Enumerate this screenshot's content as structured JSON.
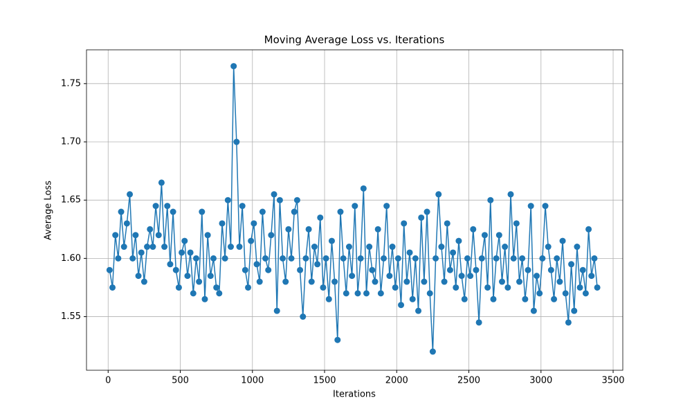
{
  "chart_data": {
    "type": "line",
    "title": "Moving Average Loss vs. Iterations",
    "x_label": "Iterations",
    "y_label": "Average Loss",
    "x": [
      10,
      30,
      50,
      70,
      90,
      110,
      130,
      150,
      170,
      190,
      210,
      230,
      250,
      270,
      290,
      310,
      330,
      350,
      370,
      390,
      410,
      430,
      450,
      470,
      490,
      510,
      530,
      550,
      570,
      590,
      610,
      630,
      650,
      670,
      690,
      710,
      730,
      750,
      770,
      790,
      810,
      830,
      850,
      870,
      890,
      910,
      930,
      950,
      970,
      990,
      1010,
      1030,
      1050,
      1070,
      1090,
      1110,
      1130,
      1150,
      1170,
      1190,
      1210,
      1230,
      1250,
      1270,
      1290,
      1310,
      1330,
      1350,
      1370,
      1390,
      1410,
      1430,
      1450,
      1470,
      1490,
      1510,
      1530,
      1550,
      1570,
      1590,
      1610,
      1630,
      1650,
      1670,
      1690,
      1710,
      1730,
      1750,
      1770,
      1790,
      1810,
      1830,
      1850,
      1870,
      1890,
      1910,
      1930,
      1950,
      1970,
      1990,
      2010,
      2030,
      2050,
      2070,
      2090,
      2110,
      2130,
      2150,
      2170,
      2190,
      2210,
      2230,
      2250,
      2270,
      2290,
      2310,
      2330,
      2350,
      2370,
      2390,
      2410,
      2430,
      2450,
      2470,
      2490,
      2510,
      2530,
      2550,
      2570,
      2590,
      2610,
      2630,
      2650,
      2670,
      2690,
      2710,
      2730,
      2750,
      2770,
      2790,
      2810,
      2830,
      2850,
      2870,
      2890,
      2910,
      2930,
      2950,
      2970,
      2990,
      3010,
      3030,
      3050,
      3070,
      3090,
      3110,
      3130,
      3150,
      3170,
      3190,
      3210,
      3230,
      3250,
      3270,
      3290,
      3310,
      3330,
      3350,
      3370,
      3390
    ],
    "series": [
      {
        "color": "#1f77b4",
        "values": [
          1.59,
          1.575,
          1.62,
          1.6,
          1.64,
          1.61,
          1.63,
          1.655,
          1.6,
          1.62,
          1.585,
          1.605,
          1.58,
          1.61,
          1.625,
          1.61,
          1.645,
          1.62,
          1.665,
          1.61,
          1.645,
          1.595,
          1.64,
          1.59,
          1.575,
          1.605,
          1.615,
          1.585,
          1.605,
          1.57,
          1.6,
          1.58,
          1.64,
          1.565,
          1.62,
          1.585,
          1.6,
          1.575,
          1.57,
          1.63,
          1.6,
          1.65,
          1.61,
          1.765,
          1.7,
          1.61,
          1.645,
          1.59,
          1.575,
          1.615,
          1.63,
          1.595,
          1.58,
          1.64,
          1.6,
          1.59,
          1.62,
          1.655,
          1.555,
          1.65,
          1.6,
          1.58,
          1.625,
          1.6,
          1.64,
          1.65,
          1.59,
          1.55,
          1.6,
          1.625,
          1.58,
          1.61,
          1.595,
          1.635,
          1.575,
          1.6,
          1.565,
          1.615,
          1.58,
          1.53,
          1.64,
          1.6,
          1.57,
          1.61,
          1.585,
          1.645,
          1.57,
          1.6,
          1.66,
          1.57,
          1.61,
          1.59,
          1.58,
          1.625,
          1.57,
          1.6,
          1.645,
          1.585,
          1.61,
          1.575,
          1.6,
          1.56,
          1.63,
          1.58,
          1.605,
          1.565,
          1.6,
          1.555,
          1.635,
          1.58,
          1.64,
          1.57,
          1.52,
          1.6,
          1.655,
          1.61,
          1.58,
          1.63,
          1.59,
          1.605,
          1.575,
          1.615,
          1.585,
          1.565,
          1.6,
          1.585,
          1.625,
          1.59,
          1.545,
          1.6,
          1.62,
          1.575,
          1.65,
          1.565,
          1.6,
          1.62,
          1.58,
          1.61,
          1.575,
          1.655,
          1.6,
          1.63,
          1.58,
          1.6,
          1.565,
          1.59,
          1.645,
          1.555,
          1.585,
          1.57,
          1.6,
          1.645,
          1.61,
          1.59,
          1.565,
          1.6,
          1.58,
          1.615,
          1.57,
          1.545,
          1.595,
          1.555,
          1.61,
          1.575,
          1.59,
          1.57,
          1.625,
          1.585,
          1.6,
          1.575
        ]
      }
    ],
    "xlim": [
      -150,
      3567
    ],
    "ylim": [
      1.504,
      1.779
    ],
    "xticks": [
      0,
      500,
      1000,
      1500,
      2000,
      2500,
      3000,
      3500
    ],
    "yticks": [
      1.55,
      {
        "value": 1.6,
        "label": "1.60"
      },
      1.65,
      {
        "value": 1.7,
        "label": "1.70"
      },
      1.75
    ],
    "grid": true
  }
}
